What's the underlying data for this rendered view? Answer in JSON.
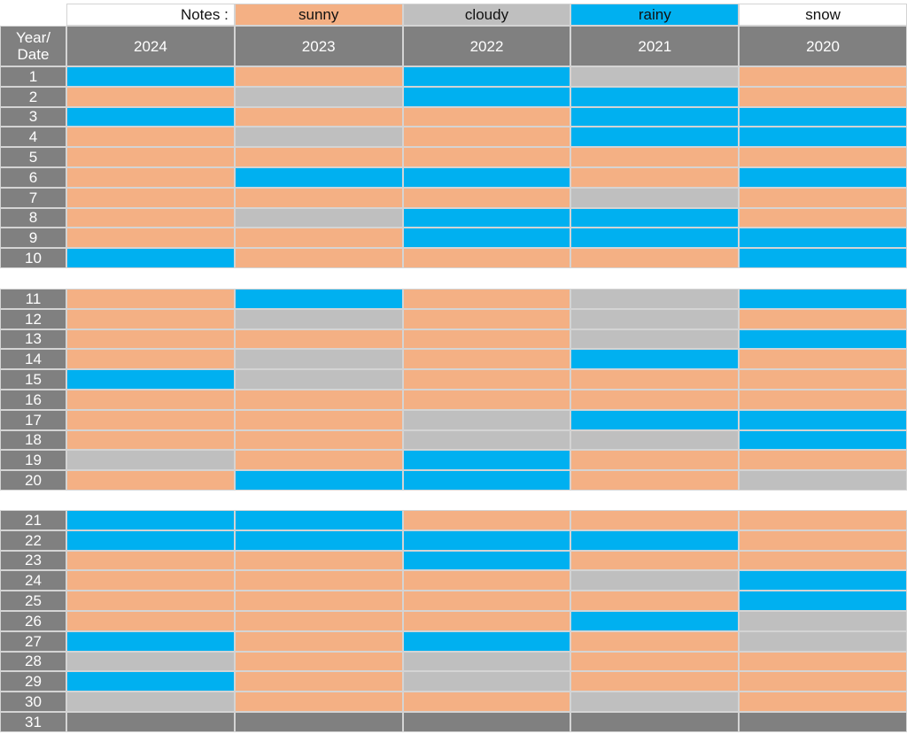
{
  "legend": {
    "notes_label": "Notes :",
    "items": [
      {
        "key": "sunny",
        "label": "sunny",
        "color": "#f4b084"
      },
      {
        "key": "cloudy",
        "label": "cloudy",
        "color": "#bfbfbf"
      },
      {
        "key": "rainy",
        "label": "rainy",
        "color": "#00b0f0"
      },
      {
        "key": "snow",
        "label": "snow",
        "color": "#ffffff"
      }
    ]
  },
  "header": {
    "corner_label_line1": "Year/",
    "corner_label_line2": "Date"
  },
  "colors": {
    "header_bg": "#808080",
    "no_data": "#808080"
  },
  "chart_data": {
    "type": "heatmap",
    "x": [
      "2024",
      "2023",
      "2022",
      "2021",
      "2020"
    ],
    "y": [
      "1",
      "2",
      "3",
      "4",
      "5",
      "6",
      "7",
      "8",
      "9",
      "10",
      "11",
      "12",
      "13",
      "14",
      "15",
      "16",
      "17",
      "18",
      "19",
      "20",
      "21",
      "22",
      "23",
      "24",
      "25",
      "26",
      "27",
      "28",
      "29",
      "30",
      "31"
    ],
    "values": [
      [
        "rainy",
        "sunny",
        "rainy",
        "cloudy",
        "sunny"
      ],
      [
        "sunny",
        "cloudy",
        "rainy",
        "rainy",
        "sunny"
      ],
      [
        "rainy",
        "sunny",
        "sunny",
        "rainy",
        "rainy"
      ],
      [
        "sunny",
        "cloudy",
        "sunny",
        "rainy",
        "rainy"
      ],
      [
        "sunny",
        "sunny",
        "sunny",
        "sunny",
        "sunny"
      ],
      [
        "sunny",
        "rainy",
        "rainy",
        "sunny",
        "rainy"
      ],
      [
        "sunny",
        "sunny",
        "sunny",
        "cloudy",
        "sunny"
      ],
      [
        "sunny",
        "cloudy",
        "rainy",
        "rainy",
        "sunny"
      ],
      [
        "sunny",
        "sunny",
        "rainy",
        "rainy",
        "rainy"
      ],
      [
        "rainy",
        "sunny",
        "sunny",
        "sunny",
        "rainy"
      ],
      [
        "sunny",
        "rainy",
        "sunny",
        "cloudy",
        "rainy"
      ],
      [
        "sunny",
        "cloudy",
        "sunny",
        "cloudy",
        "sunny"
      ],
      [
        "sunny",
        "sunny",
        "sunny",
        "cloudy",
        "rainy"
      ],
      [
        "sunny",
        "cloudy",
        "sunny",
        "rainy",
        "sunny"
      ],
      [
        "rainy",
        "cloudy",
        "sunny",
        "sunny",
        "sunny"
      ],
      [
        "sunny",
        "sunny",
        "sunny",
        "sunny",
        "sunny"
      ],
      [
        "sunny",
        "sunny",
        "cloudy",
        "rainy",
        "rainy"
      ],
      [
        "sunny",
        "sunny",
        "cloudy",
        "cloudy",
        "rainy"
      ],
      [
        "cloudy",
        "sunny",
        "rainy",
        "sunny",
        "sunny"
      ],
      [
        "sunny",
        "rainy",
        "rainy",
        "sunny",
        "cloudy"
      ],
      [
        "rainy",
        "rainy",
        "sunny",
        "sunny",
        "sunny"
      ],
      [
        "rainy",
        "rainy",
        "rainy",
        "rainy",
        "sunny"
      ],
      [
        "sunny",
        "sunny",
        "rainy",
        "sunny",
        "sunny"
      ],
      [
        "sunny",
        "sunny",
        "sunny",
        "cloudy",
        "rainy"
      ],
      [
        "sunny",
        "sunny",
        "sunny",
        "sunny",
        "rainy"
      ],
      [
        "sunny",
        "sunny",
        "sunny",
        "rainy",
        "cloudy"
      ],
      [
        "rainy",
        "sunny",
        "rainy",
        "sunny",
        "cloudy"
      ],
      [
        "cloudy",
        "sunny",
        "cloudy",
        "sunny",
        "sunny"
      ],
      [
        "rainy",
        "sunny",
        "cloudy",
        "sunny",
        "sunny"
      ],
      [
        "cloudy",
        "sunny",
        "sunny",
        "cloudy",
        "sunny"
      ],
      [
        null,
        null,
        null,
        null,
        null
      ]
    ]
  }
}
